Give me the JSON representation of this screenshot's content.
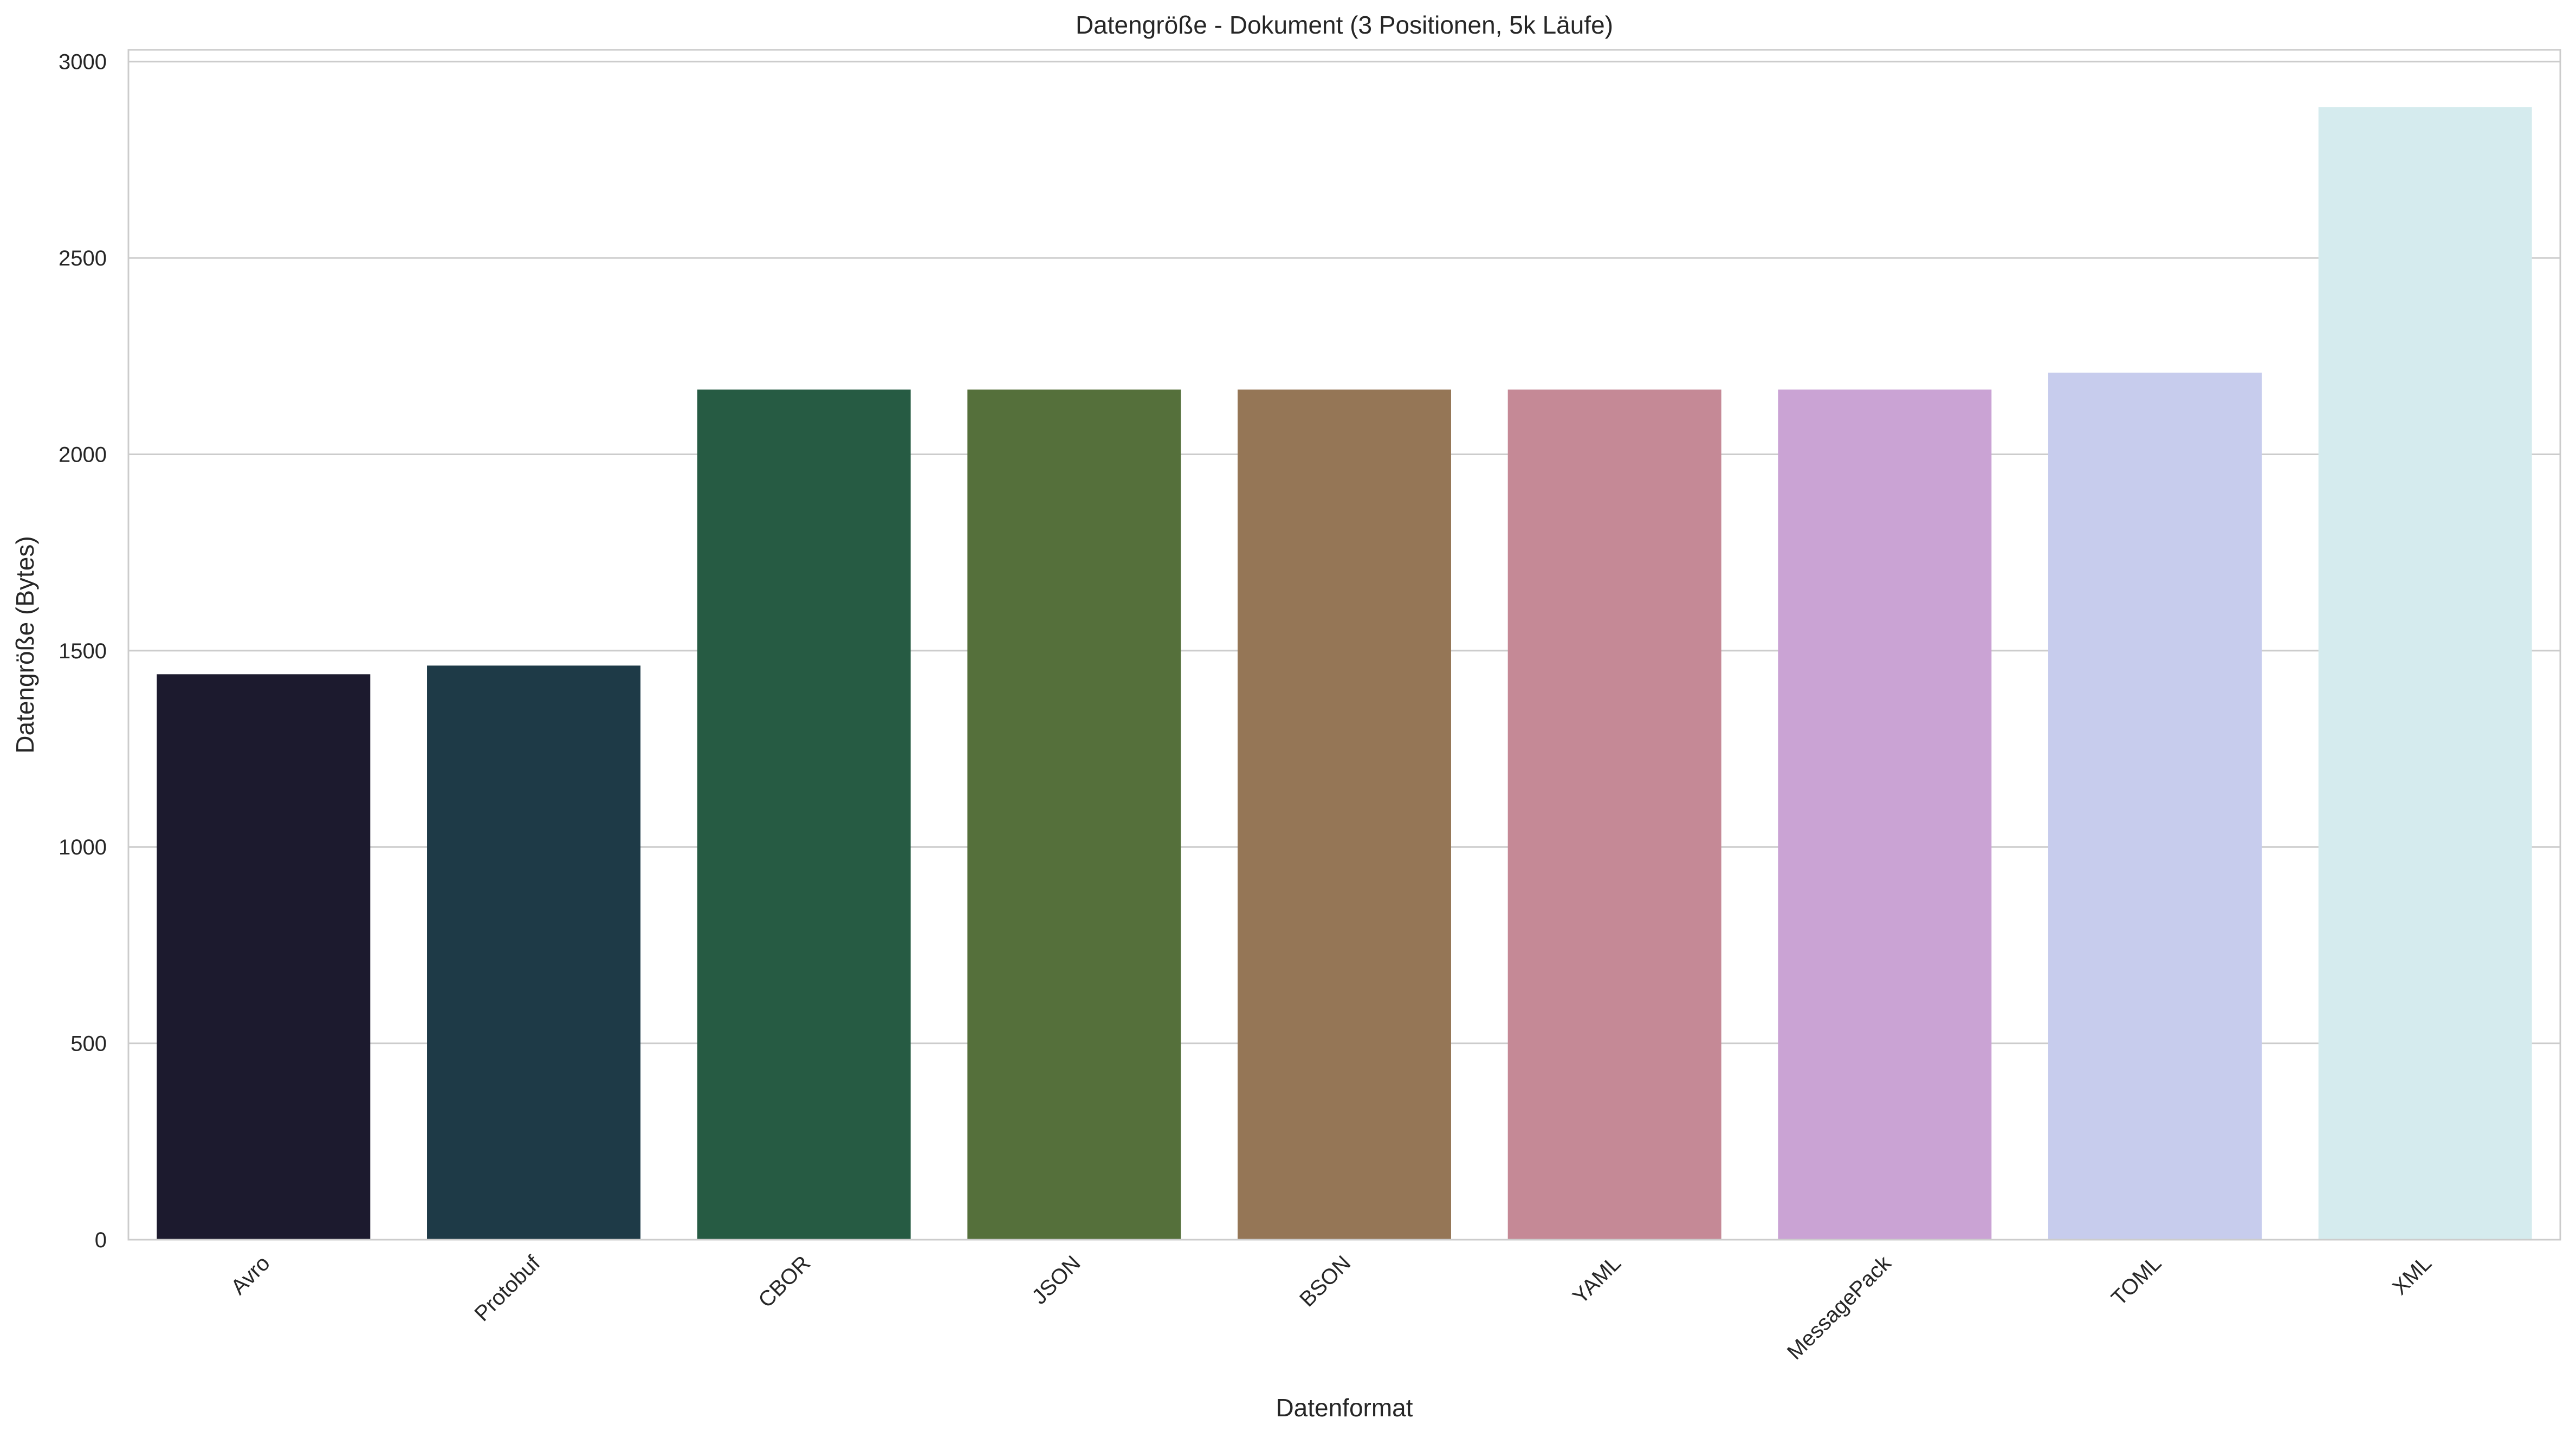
{
  "chart_data": {
    "type": "bar",
    "title": "Datengröße - Dokument (3 Positionen, 5k Läufe)",
    "xlabel": "Datenformat",
    "ylabel": "Datengröße (Bytes)",
    "categories": [
      "Avro",
      "Protobuf",
      "CBOR",
      "JSON",
      "BSON",
      "YAML",
      "MessagePack",
      "TOML",
      "XML"
    ],
    "values": [
      1440,
      1462,
      2165,
      2165,
      2165,
      2165,
      2165,
      2208,
      2884
    ],
    "colors": [
      "#1c1a2e",
      "#1e3a47",
      "#265b43",
      "#55703b",
      "#957656",
      "#c58996",
      "#caa3d4",
      "#c7cced",
      "#d5ebee"
    ],
    "ylim": [
      0,
      3030
    ],
    "yticks": [
      0,
      500,
      1000,
      1500,
      2000,
      2500,
      3000
    ],
    "grid": true,
    "legend": "none"
  }
}
